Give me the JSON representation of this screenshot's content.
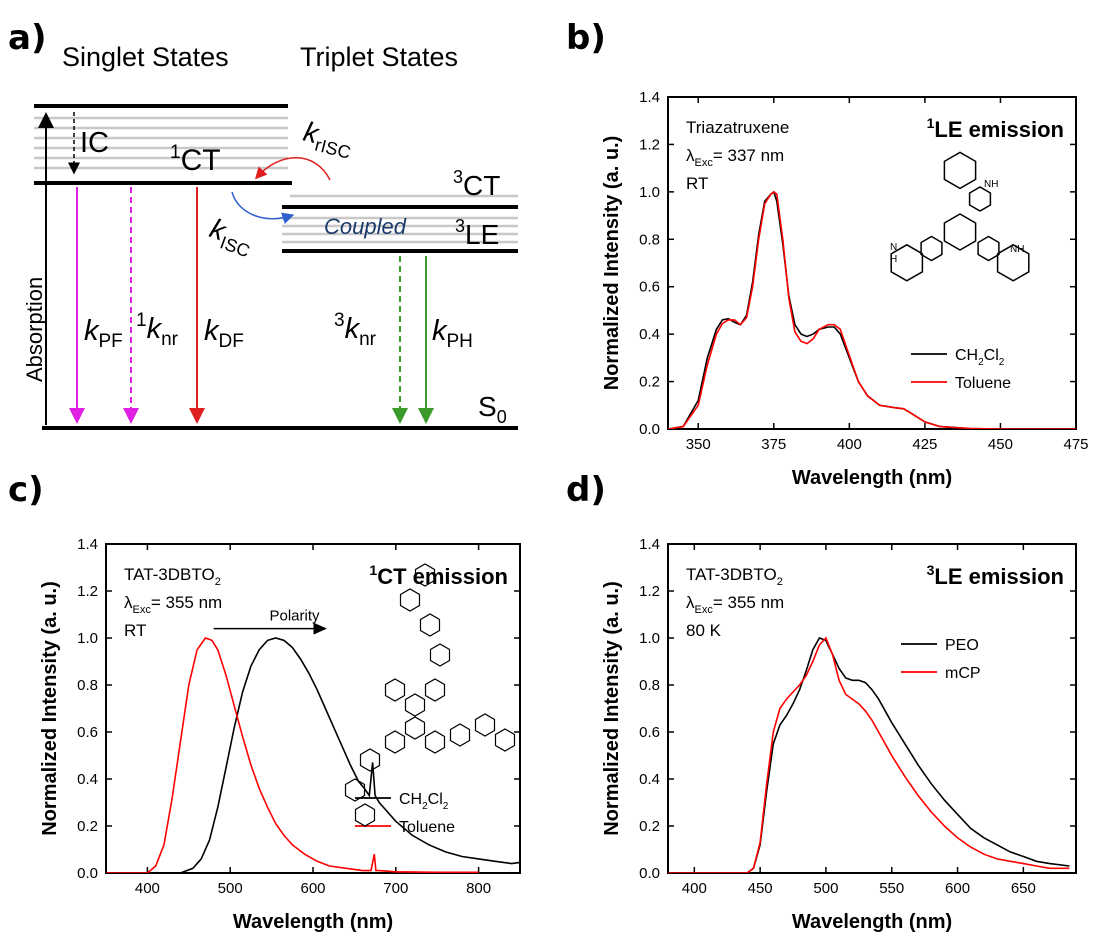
{
  "panel_labels": {
    "a": "a)",
    "b": "b)",
    "c": "c)",
    "d": "d)"
  },
  "diagram_a": {
    "singlet_title": "Singlet States",
    "triplet_title": "Triplet States",
    "ic": "IC",
    "ct1_sup": "1",
    "ct1": "CT",
    "krisc_k": "k",
    "krisc_sub": "rISC",
    "ct3_sup": "3",
    "ct3": "CT",
    "le3_sup": "3",
    "le3": "LE",
    "coupled": "Coupled",
    "kisc_k": "k",
    "kisc_sub": "ISC",
    "absorption": "Absorption",
    "kpf_k": "k",
    "kpf_sub": "PF",
    "knr1_sup": "1",
    "knr1_k": "k",
    "knr1_sub": "nr",
    "kdf_k": "k",
    "kdf_sub": "DF",
    "knr3_sup": "3",
    "knr3_k": "k",
    "knr3_sub": "nr",
    "kph_k": "k",
    "kph_sub": "PH",
    "s0": "S",
    "s0_sub": "0",
    "colors": {
      "pf": "#e020e0",
      "df": "#e02020",
      "ph": "#3a9a2a",
      "risc": "#e02020",
      "isc": "#3060d0",
      "coupled": "#1a3a6a"
    }
  },
  "chart_data": [
    {
      "id": "b",
      "type": "line",
      "xlabel": "Wavelength (nm)",
      "ylabel": "Normalized Intensity (a. u.)",
      "xlim": [
        340,
        475
      ],
      "ylim": [
        0,
        1.4
      ],
      "xticks": [
        350,
        375,
        400,
        425,
        450,
        475
      ],
      "yticks": [
        0.0,
        0.2,
        0.4,
        0.6,
        0.8,
        1.0,
        1.2,
        1.4
      ],
      "annotations": {
        "molecule": "Triazatruxene",
        "lambda": "λ",
        "exc": "Exc",
        "exc_value": "= 337 nm",
        "temp": "RT",
        "title_sup": "1",
        "title": "LE emission",
        "nh": "NH",
        "h": "H",
        "n": "N"
      },
      "legend_position": "bottom-right",
      "series": [
        {
          "name": "CH2Cl2",
          "label_main": "CH",
          "label_sub1": "2",
          "label_mid": "Cl",
          "label_sub2": "2",
          "color": "#000000",
          "x": [
            340,
            345,
            350,
            353,
            356,
            358,
            360,
            362,
            364,
            366,
            368,
            370,
            372,
            374,
            375,
            376,
            378,
            380,
            382,
            384,
            386,
            388,
            390,
            393,
            395,
            397,
            400,
            403,
            406,
            410,
            415,
            418,
            420,
            425,
            430,
            440,
            450,
            460,
            475
          ],
          "y": [
            0.0,
            0.01,
            0.12,
            0.3,
            0.42,
            0.46,
            0.465,
            0.45,
            0.44,
            0.48,
            0.62,
            0.82,
            0.96,
            0.99,
            1.0,
            0.96,
            0.78,
            0.56,
            0.44,
            0.4,
            0.39,
            0.4,
            0.42,
            0.43,
            0.43,
            0.4,
            0.3,
            0.2,
            0.14,
            0.1,
            0.09,
            0.085,
            0.07,
            0.03,
            0.01,
            0.002,
            0.0,
            0.0,
            0.0
          ]
        },
        {
          "name": "Toluene",
          "label_main": "Toluene",
          "color": "#ff0000",
          "x": [
            340,
            345,
            350,
            353,
            356,
            358,
            360,
            362,
            364,
            366,
            368,
            370,
            372,
            374,
            375,
            376,
            378,
            380,
            382,
            384,
            386,
            388,
            390,
            393,
            395,
            397,
            400,
            403,
            406,
            410,
            415,
            418,
            420,
            425,
            430,
            440,
            450,
            460,
            475
          ],
          "y": [
            0.0,
            0.01,
            0.1,
            0.27,
            0.4,
            0.445,
            0.46,
            0.46,
            0.44,
            0.47,
            0.6,
            0.8,
            0.95,
            0.99,
            1.0,
            0.99,
            0.8,
            0.55,
            0.41,
            0.37,
            0.36,
            0.38,
            0.42,
            0.44,
            0.44,
            0.42,
            0.31,
            0.2,
            0.14,
            0.1,
            0.09,
            0.085,
            0.07,
            0.03,
            0.01,
            0.002,
            0.0,
            0.0,
            0.0
          ]
        }
      ]
    },
    {
      "id": "c",
      "type": "line",
      "xlabel": "Wavelength (nm)",
      "ylabel": "Normalized Intensity (a. u.)",
      "xlim": [
        350,
        850
      ],
      "ylim": [
        0,
        1.4
      ],
      "xticks": [
        400,
        500,
        600,
        700,
        800
      ],
      "yticks": [
        0.0,
        0.2,
        0.4,
        0.6,
        0.8,
        1.0,
        1.2,
        1.4
      ],
      "annotations": {
        "molecule_main": "TAT-3DBTO",
        "molecule_sub": "2",
        "lambda": "λ",
        "exc": "Exc",
        "exc_value": "= 355 nm",
        "temp": "RT",
        "title_sup": "1",
        "title": "CT emission",
        "arrow_label": "Polarity"
      },
      "arrow": {
        "from": 480,
        "to": 615,
        "y": 1.04
      },
      "legend_position": "bottom-right",
      "series": [
        {
          "name": "CH2Cl2",
          "label_main": "CH",
          "label_sub1": "2",
          "label_mid": "Cl",
          "label_sub2": "2",
          "color": "#000000",
          "x": [
            350,
            440,
            455,
            465,
            475,
            485,
            495,
            505,
            515,
            525,
            535,
            545,
            555,
            565,
            575,
            585,
            595,
            605,
            615,
            625,
            635,
            645,
            655,
            662,
            668,
            672,
            675,
            680,
            690,
            700,
            720,
            740,
            760,
            780,
            800,
            820,
            840,
            850
          ],
          "y": [
            0.0,
            0.0,
            0.02,
            0.06,
            0.14,
            0.28,
            0.45,
            0.62,
            0.77,
            0.88,
            0.95,
            0.99,
            1.0,
            0.99,
            0.96,
            0.91,
            0.85,
            0.78,
            0.7,
            0.62,
            0.54,
            0.46,
            0.39,
            0.36,
            0.33,
            0.47,
            0.33,
            0.3,
            0.26,
            0.22,
            0.16,
            0.12,
            0.09,
            0.07,
            0.06,
            0.05,
            0.04,
            0.045
          ]
        },
        {
          "name": "Toluene",
          "label_main": "Toluene",
          "color": "#ff0000",
          "x": [
            350,
            400,
            410,
            420,
            430,
            440,
            450,
            460,
            470,
            478,
            485,
            495,
            505,
            515,
            525,
            535,
            545,
            555,
            565,
            575,
            590,
            605,
            620,
            640,
            660,
            670,
            674,
            676,
            680,
            700,
            750,
            800
          ],
          "y": [
            0.0,
            0.0,
            0.03,
            0.12,
            0.32,
            0.56,
            0.8,
            0.95,
            1.0,
            0.99,
            0.95,
            0.84,
            0.71,
            0.58,
            0.46,
            0.36,
            0.28,
            0.21,
            0.16,
            0.12,
            0.08,
            0.05,
            0.03,
            0.02,
            0.01,
            0.01,
            0.08,
            0.01,
            0.01,
            0.005,
            0.003,
            0.003
          ]
        }
      ]
    },
    {
      "id": "d",
      "type": "line",
      "xlabel": "Wavelength (nm)",
      "ylabel": "Normalized Intensity (a. u.)",
      "xlim": [
        380,
        690
      ],
      "ylim": [
        0,
        1.4
      ],
      "xticks": [
        400,
        450,
        500,
        550,
        600,
        650
      ],
      "yticks": [
        0.0,
        0.2,
        0.4,
        0.6,
        0.8,
        1.0,
        1.2,
        1.4
      ],
      "annotations": {
        "molecule_main": "TAT-3DBTO",
        "molecule_sub": "2",
        "lambda": "λ",
        "exc": "Exc",
        "exc_value": "= 355 nm",
        "temp": "80 K",
        "title_sup": "3",
        "title": "LE emission"
      },
      "legend_position": "top-right",
      "series": [
        {
          "name": "PEO",
          "label_main": "PEO",
          "color": "#000000",
          "x": [
            380,
            440,
            445,
            450,
            455,
            460,
            465,
            470,
            475,
            480,
            485,
            490,
            495,
            500,
            505,
            510,
            515,
            520,
            525,
            530,
            535,
            540,
            550,
            560,
            570,
            580,
            590,
            600,
            610,
            620,
            630,
            640,
            650,
            660,
            670,
            685
          ],
          "y": [
            0.0,
            0.0,
            0.02,
            0.12,
            0.35,
            0.55,
            0.63,
            0.67,
            0.72,
            0.78,
            0.86,
            0.95,
            1.0,
            0.99,
            0.93,
            0.87,
            0.83,
            0.82,
            0.82,
            0.81,
            0.78,
            0.74,
            0.64,
            0.55,
            0.46,
            0.38,
            0.31,
            0.25,
            0.19,
            0.15,
            0.12,
            0.09,
            0.07,
            0.05,
            0.04,
            0.03
          ]
        },
        {
          "name": "mCP",
          "label_main": "mCP",
          "color": "#ff0000",
          "x": [
            380,
            440,
            445,
            450,
            455,
            460,
            465,
            470,
            475,
            480,
            485,
            490,
            495,
            500,
            505,
            510,
            515,
            520,
            525,
            530,
            535,
            540,
            550,
            560,
            570,
            580,
            590,
            600,
            610,
            620,
            630,
            640,
            650,
            660,
            670,
            685
          ],
          "y": [
            0.0,
            0.0,
            0.02,
            0.13,
            0.38,
            0.6,
            0.7,
            0.74,
            0.77,
            0.8,
            0.84,
            0.9,
            0.97,
            1.0,
            0.93,
            0.82,
            0.76,
            0.74,
            0.72,
            0.69,
            0.65,
            0.6,
            0.5,
            0.41,
            0.33,
            0.26,
            0.2,
            0.15,
            0.11,
            0.08,
            0.06,
            0.05,
            0.04,
            0.03,
            0.02,
            0.02
          ]
        }
      ]
    }
  ]
}
